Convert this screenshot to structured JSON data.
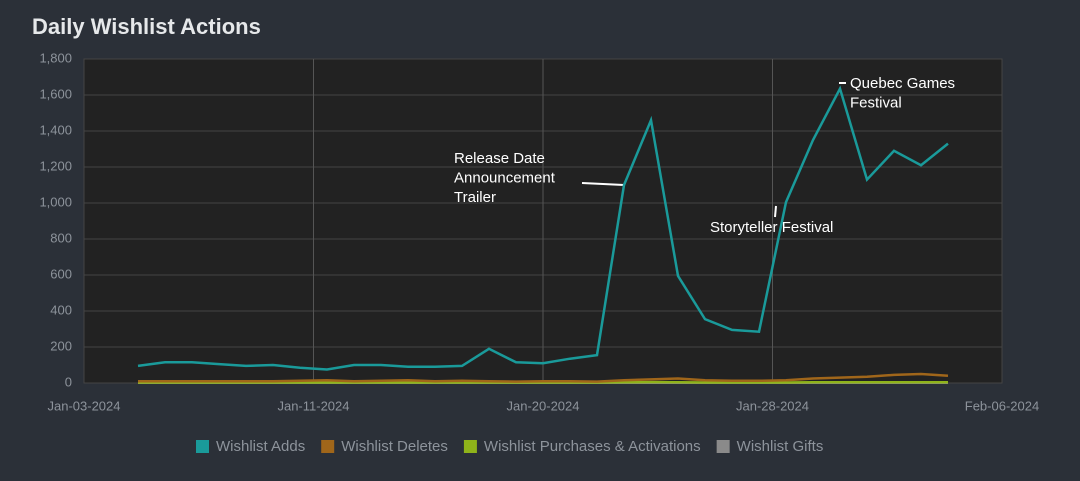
{
  "chart_data": {
    "type": "line",
    "title": "Daily Wishlist Actions",
    "x": [
      "2024-01-05",
      "2024-01-06",
      "2024-01-07",
      "2024-01-08",
      "2024-01-09",
      "2024-01-10",
      "2024-01-11",
      "2024-01-12",
      "2024-01-13",
      "2024-01-14",
      "2024-01-15",
      "2024-01-16",
      "2024-01-17",
      "2024-01-18",
      "2024-01-19",
      "2024-01-20",
      "2024-01-21",
      "2024-01-22",
      "2024-01-23",
      "2024-01-24",
      "2024-01-25",
      "2024-01-26",
      "2024-01-27",
      "2024-01-28",
      "2024-01-29",
      "2024-01-30",
      "2024-01-31",
      "2024-02-01",
      "2024-02-02",
      "2024-02-03",
      "2024-02-04"
    ],
    "series": [
      {
        "name": "Wishlist Adds",
        "color": "#1a9a9a",
        "values": [
          95,
          115,
          115,
          105,
          95,
          100,
          85,
          75,
          100,
          100,
          90,
          90,
          95,
          190,
          115,
          110,
          135,
          155,
          1100,
          1460,
          595,
          355,
          295,
          285,
          1005,
          1350,
          1635,
          1130,
          1290,
          1210,
          1330
        ]
      },
      {
        "name": "Wishlist Deletes",
        "color": "#a0661a",
        "values": [
          10,
          10,
          10,
          10,
          10,
          10,
          12,
          15,
          10,
          12,
          15,
          10,
          12,
          10,
          8,
          10,
          10,
          8,
          15,
          20,
          25,
          15,
          12,
          12,
          15,
          25,
          30,
          35,
          45,
          50,
          40
        ]
      },
      {
        "name": "Wishlist Purchases & Activations",
        "color": "#8fb31a",
        "values": [
          3,
          3,
          3,
          3,
          3,
          3,
          3,
          3,
          3,
          3,
          3,
          3,
          3,
          3,
          3,
          3,
          3,
          3,
          4,
          5,
          4,
          3,
          3,
          3,
          3,
          4,
          4,
          4,
          4,
          4,
          4
        ]
      },
      {
        "name": "Wishlist Gifts",
        "color": "#8a8a8a",
        "values": [
          1,
          1,
          1,
          1,
          1,
          1,
          1,
          1,
          1,
          1,
          1,
          1,
          1,
          1,
          1,
          1,
          1,
          1,
          1,
          1,
          1,
          1,
          1,
          1,
          1,
          1,
          1,
          1,
          1,
          1,
          1
        ]
      }
    ],
    "xlim": [
      "2024-01-03",
      "2024-02-06"
    ],
    "xticks": [
      {
        "value": "2024-01-03",
        "label": "Jan-03-2024"
      },
      {
        "value": "2024-01-11T12:00:00Z",
        "label": "Jan-11-2024"
      },
      {
        "value": "2024-01-20",
        "label": "Jan-20-2024"
      },
      {
        "value": "2024-01-28T12:00:00Z",
        "label": "Jan-28-2024"
      },
      {
        "value": "2024-02-06",
        "label": "Feb-06-2024"
      }
    ],
    "ylim": [
      0,
      1800
    ],
    "yticks": [
      0,
      200,
      400,
      600,
      800,
      {
        "value": 1000,
        "label": "1,000"
      },
      {
        "value": 1200,
        "label": "1,200"
      },
      {
        "value": 1400,
        "label": "1,400"
      },
      {
        "value": 1600,
        "label": "1,600"
      },
      {
        "value": 1800,
        "label": "1,800"
      }
    ],
    "grid": true,
    "legend": "bottom",
    "annotations": [
      {
        "text": [
          "Release Date",
          "Announcement",
          "Trailer"
        ]
      },
      {
        "text": [
          "Storyteller Festival"
        ]
      },
      {
        "text": [
          "Quebec Games",
          "Festival"
        ]
      }
    ]
  }
}
